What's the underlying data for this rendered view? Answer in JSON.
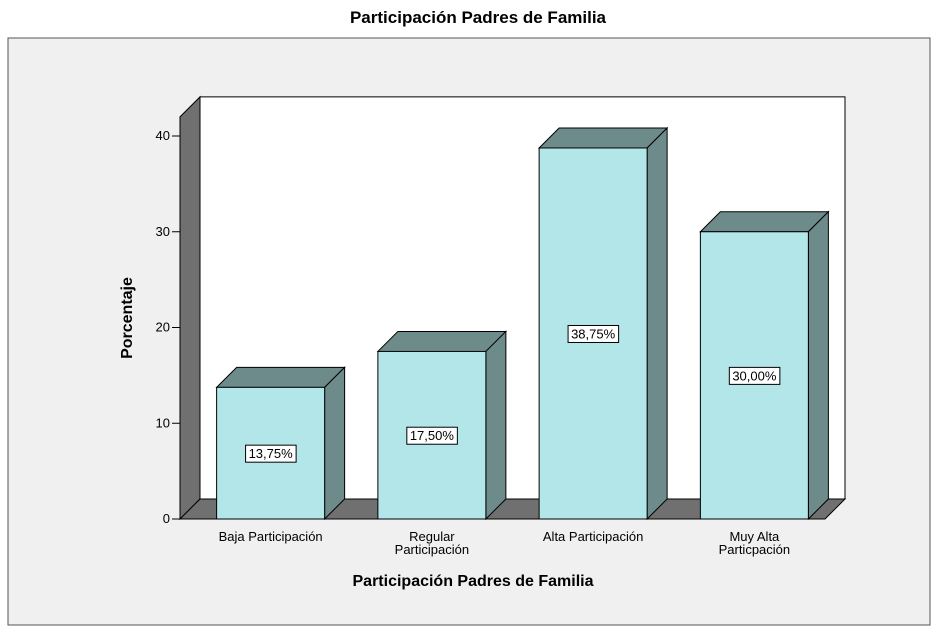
{
  "chart_data": {
    "type": "bar3d",
    "title": "Participación Padres de Familia",
    "x_label": "Participación Padres de Familia",
    "y_label": "Porcentaje",
    "categories": [
      "Baja Participación",
      "Regular\nParticipación",
      "Alta Participación",
      "Muy Alta\nParticpación"
    ],
    "values": [
      13.75,
      17.5,
      38.75,
      30
    ],
    "value_labels": [
      "13,75%",
      "17,50%",
      "38,75%",
      "30,00%"
    ],
    "color": "#b3e6e8",
    "shade_color": "#6e8b8b",
    "ylim": [
      0,
      42
    ],
    "yticks": [
      0,
      10,
      20,
      30,
      40
    ]
  }
}
